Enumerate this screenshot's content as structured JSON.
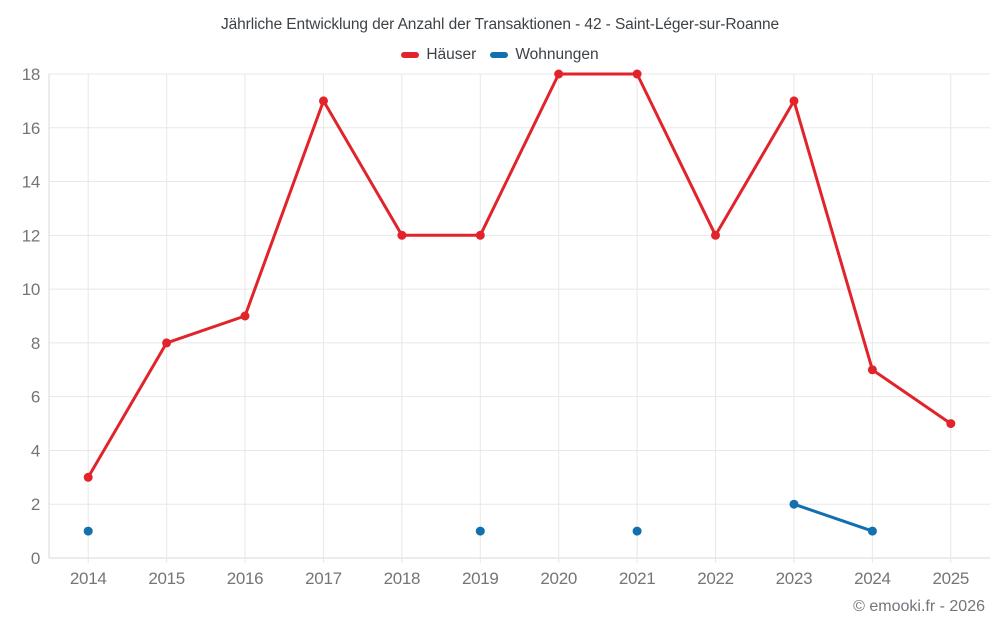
{
  "title": "Jährliche Entwicklung der Anzahl der Transaktionen - 42 - Saint-Léger-sur-Roanne",
  "footer": "© emooki.fr - 2026",
  "colors": {
    "hauser_red": "#e1242b",
    "wohnungen_blue": "#1170ad",
    "grid": "#e8e8e8",
    "axis": "#dadada",
    "tick_text": "#72767a",
    "title_text": "#3d4247"
  },
  "legend": [
    {
      "label": "Häuser",
      "color": "#e1242b"
    },
    {
      "label": "Wohnungen",
      "color": "#1170ad"
    }
  ],
  "chart_data": {
    "type": "line",
    "title": "Jährliche Entwicklung der Anzahl der Transaktionen - 42 - Saint-Léger-sur-Roanne",
    "categories": [
      "2014",
      "2015",
      "2016",
      "2017",
      "2018",
      "2019",
      "2020",
      "2021",
      "2022",
      "2023",
      "2024",
      "2025"
    ],
    "series": [
      {
        "name": "Häuser",
        "color": "#e1242b",
        "values": [
          3,
          8,
          9,
          17,
          12,
          12,
          18,
          18,
          12,
          17,
          7,
          5
        ]
      },
      {
        "name": "Wohnungen",
        "color": "#1170ad",
        "values": [
          1,
          null,
          null,
          null,
          null,
          1,
          null,
          1,
          null,
          2,
          1,
          null
        ]
      }
    ],
    "xlabel": "",
    "ylabel": "",
    "ylim": [
      0,
      18
    ],
    "ytick_step": 2,
    "yticks": [
      0,
      2,
      4,
      6,
      8,
      10,
      12,
      14,
      16,
      18
    ],
    "grid": true,
    "legend_position": "top"
  }
}
